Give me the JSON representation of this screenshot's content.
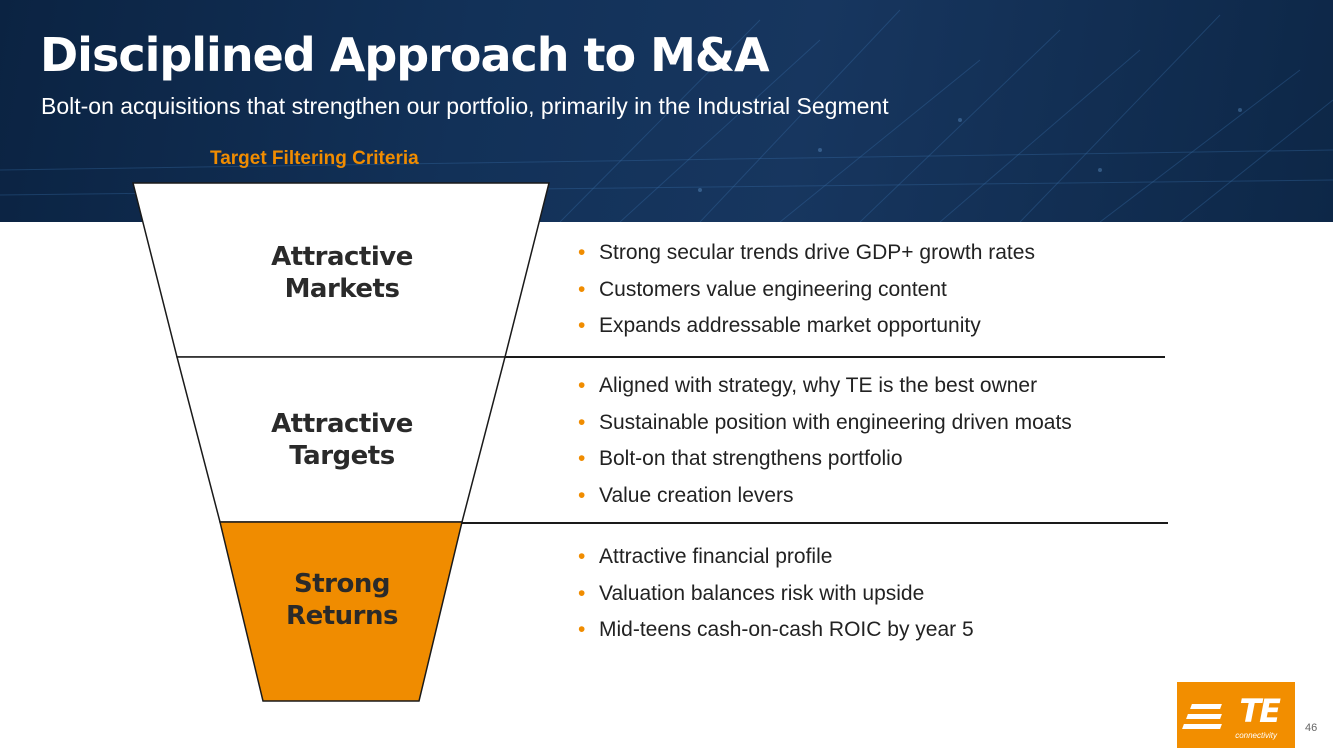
{
  "header": {
    "title": "Disciplined Approach to M&A",
    "subtitle": "Bolt-on acquisitions that strengthen our portfolio, primarily in the Industrial Segment"
  },
  "funnel": {
    "heading": "Target Filtering Criteria",
    "stages": [
      {
        "label_line1": "Attractive",
        "label_line2": "Markets",
        "fill": "#ffffff",
        "bullets": [
          "Strong secular trends drive GDP+ growth rates",
          "Customers value engineering content",
          "Expands addressable market opportunity"
        ]
      },
      {
        "label_line1": "Attractive",
        "label_line2": "Targets",
        "fill": "#ffffff",
        "bullets": [
          "Aligned with strategy, why TE is the best owner",
          "Sustainable position with engineering driven moats",
          "Bolt-on that strengthens portfolio",
          "Value creation levers"
        ]
      },
      {
        "label_line1": "Strong",
        "label_line2": "Returns",
        "fill": "#f08c00",
        "bullets": [
          "Attractive financial profile",
          "Valuation balances risk with upside",
          "Mid-teens cash-on-cash ROIC by year 5"
        ]
      }
    ]
  },
  "logo": {
    "text": "TE",
    "tagline": "connectivity",
    "color": "#f28e00",
    "icon": "te-connectivity-logo"
  },
  "footer": {
    "page_number": "46"
  },
  "colors": {
    "accent": "#f08c00",
    "banner": "#123158",
    "text": "#222222"
  }
}
